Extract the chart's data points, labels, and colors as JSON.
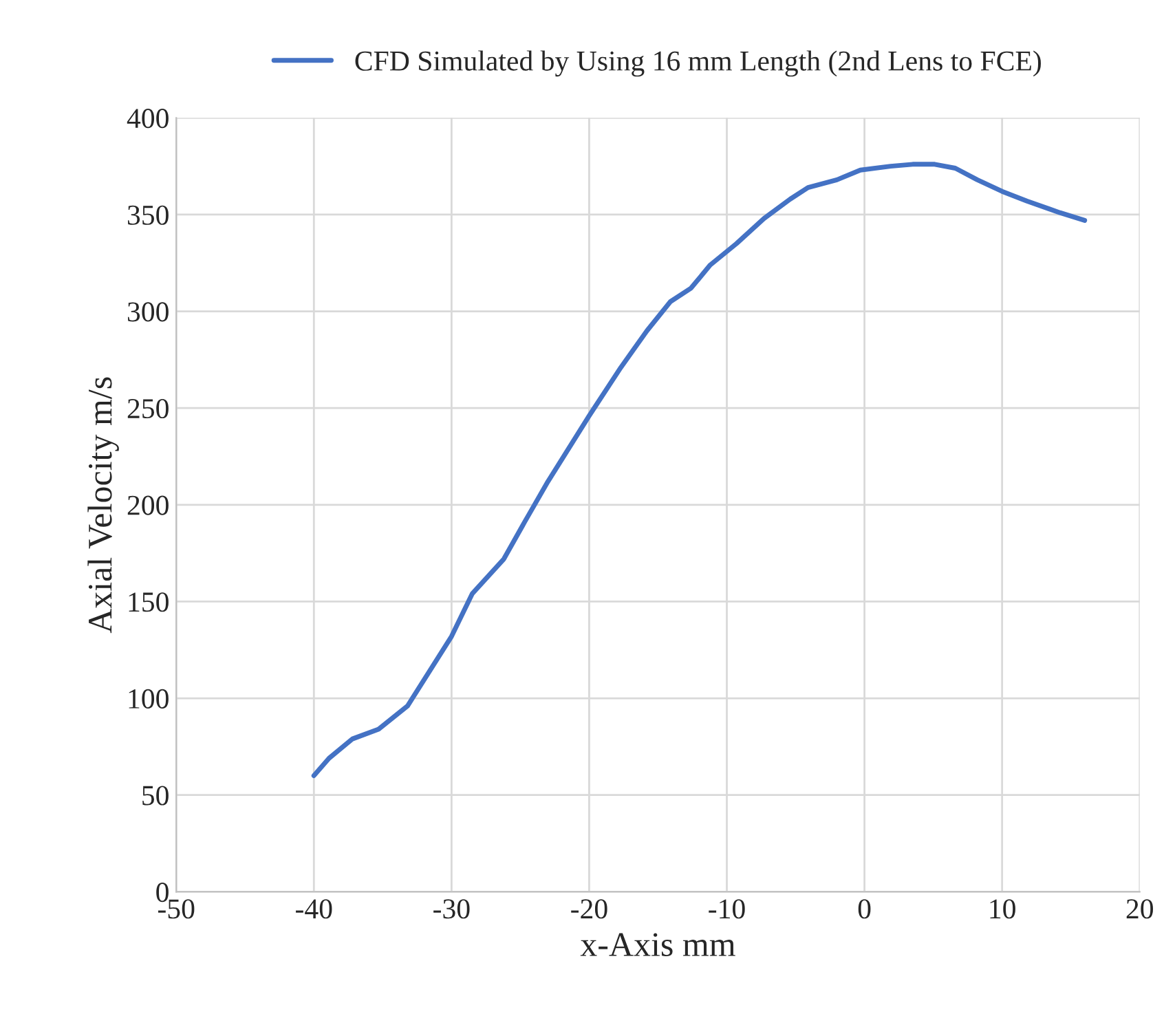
{
  "chart_data": {
    "type": "line",
    "xlabel": "x-Axis mm",
    "ylabel": "Axial Velocity m/s",
    "xlim": [
      -50,
      20
    ],
    "xticks": [
      -50,
      -40,
      -30,
      -20,
      -10,
      0,
      10,
      20
    ],
    "ylim": [
      0,
      400
    ],
    "yticks": [
      0,
      50,
      100,
      150,
      200,
      250,
      300,
      350,
      400
    ],
    "grid": true,
    "legend": "top",
    "marker": "none",
    "line_style": "solid",
    "series": [
      {
        "name": "CFD Simulated by Using 16 mm Length (2nd Lens to FCE)",
        "color": "#4472c4",
        "x": [
          -40,
          -38.9,
          -37.2,
          -35.3,
          -33.2,
          -30,
          -28.5,
          -26.2,
          -24.7,
          -23,
          -20,
          -17.7,
          -15.8,
          -14.1,
          -12.6,
          -11.2,
          -9.3,
          -7.3,
          -5.4,
          -4.1,
          -2.0,
          -0.3,
          1.9,
          3.5,
          5.1,
          6.6,
          8.2,
          10,
          11.8,
          14.2,
          16
        ],
        "values": [
          60,
          69,
          79,
          84,
          96,
          132,
          154,
          172,
          191,
          212,
          246,
          271,
          290,
          305,
          312,
          324,
          335,
          348,
          358,
          364,
          368,
          373,
          375,
          376,
          376,
          374,
          368,
          362,
          357,
          351,
          347
        ]
      }
    ]
  }
}
